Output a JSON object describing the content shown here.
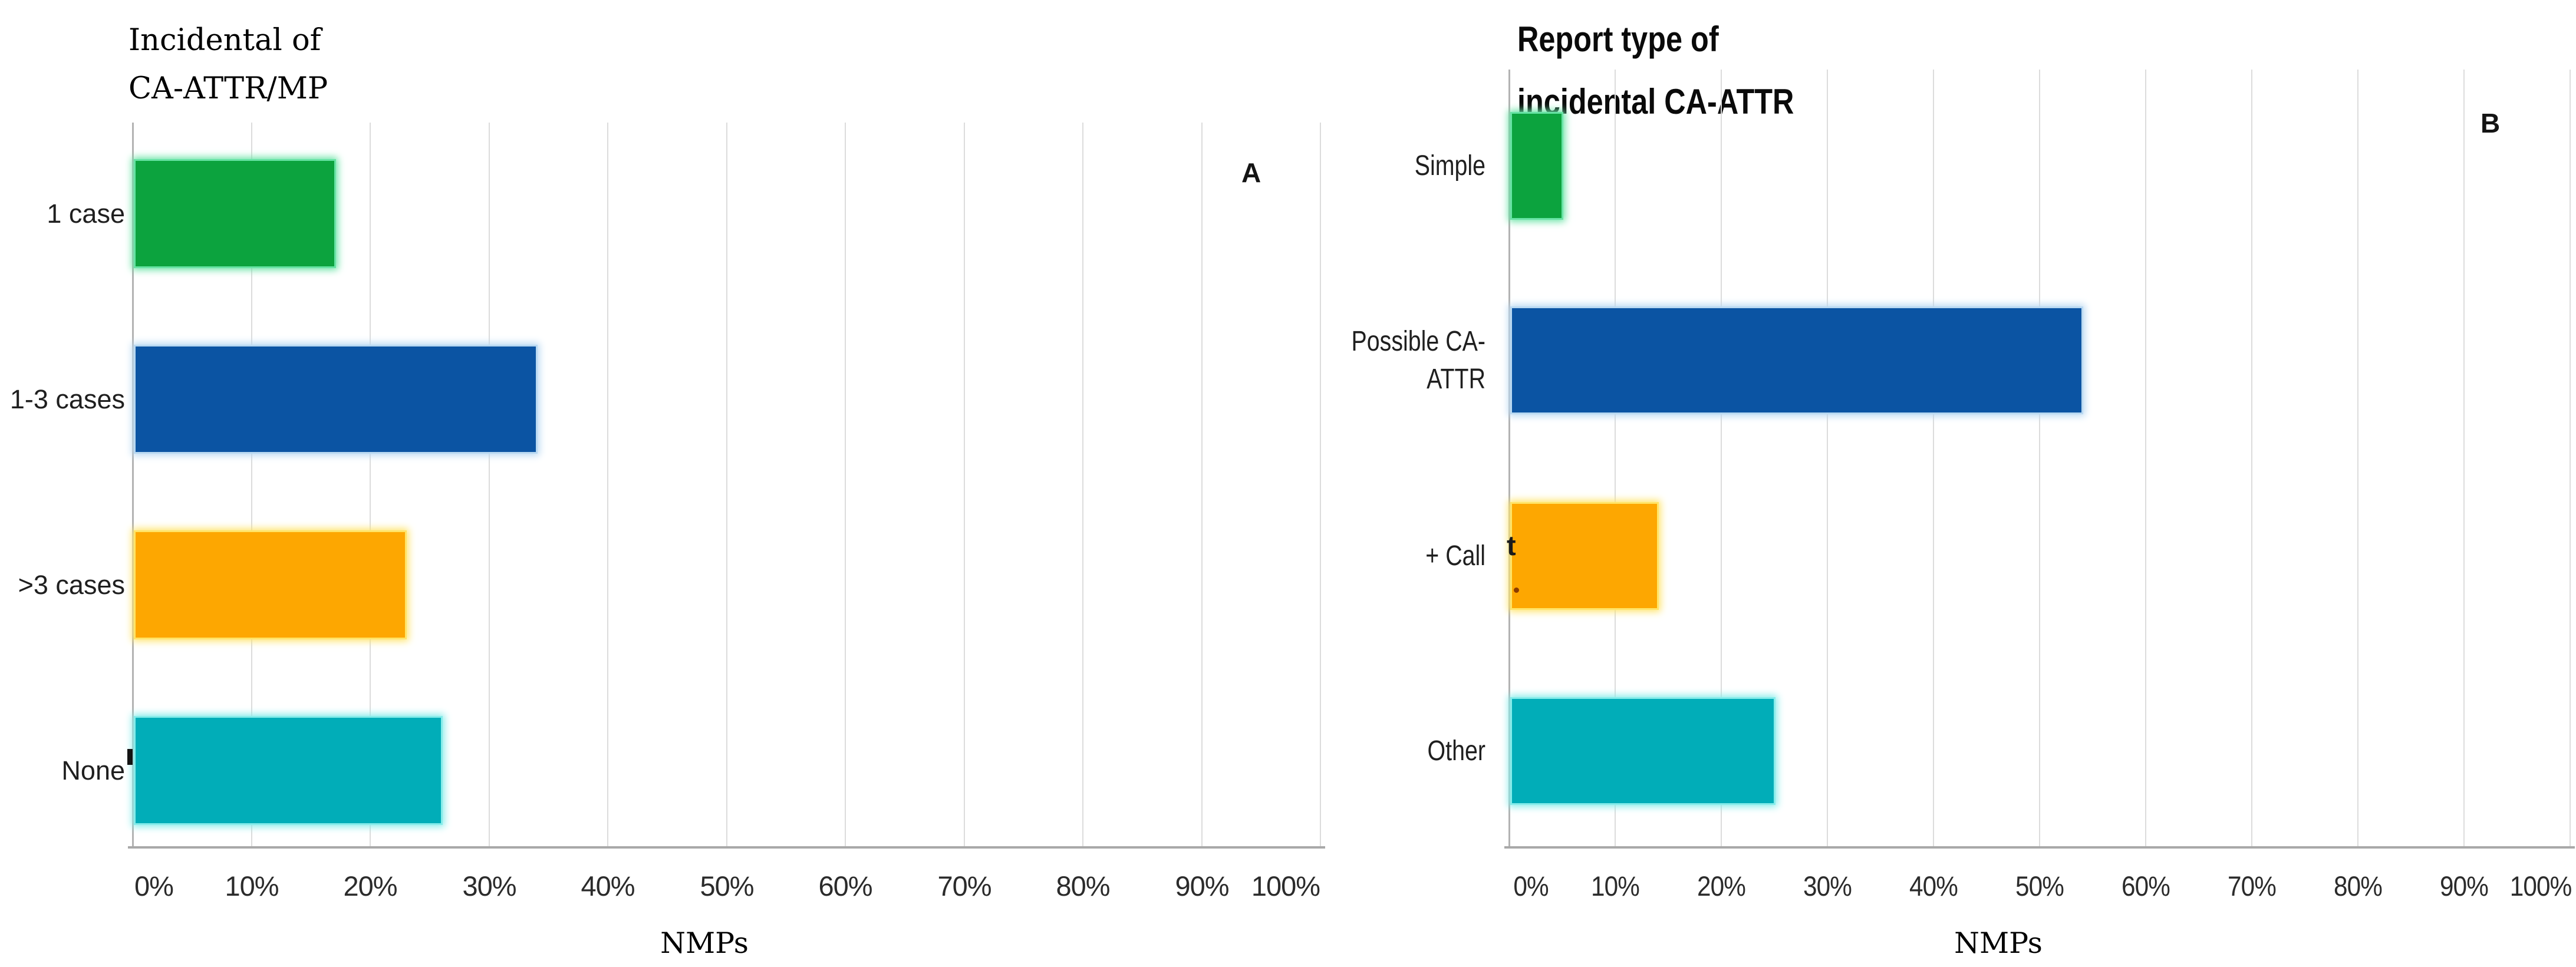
{
  "figure_caption": null,
  "panels": [
    {
      "key": "a",
      "panel_label": "A",
      "title_lines": [
        "Incidental of",
        "CA-ATTR/MP"
      ],
      "title_text": "Incidental of CA-ATTR/MP",
      "xlabel": "NMPs",
      "xticks": [
        "0%",
        "10%",
        "20%",
        "30%",
        "40%",
        "50%",
        "60%",
        "70%",
        "80%",
        "90%",
        "100%"
      ],
      "categories": [
        {
          "label": "1 case",
          "lines": [
            "1 case"
          ],
          "value": 17,
          "color": "#0ca33e",
          "halo": "#67e3a4"
        },
        {
          "label": "1-3 cases",
          "lines": [
            "1-3 cases"
          ],
          "value": 34,
          "color": "#0b54a3",
          "halo": "#b9d9f2"
        },
        {
          "label": ">3 cases",
          "lines": [
            ">3 cases"
          ],
          "value": 23,
          "color": "#fda701",
          "halo": "#ffe468"
        },
        {
          "label": "None",
          "lines": [
            "None"
          ],
          "value": 26,
          "color": "#01adb8",
          "halo": "#86ecea"
        }
      ]
    },
    {
      "key": "b",
      "panel_label": "B",
      "title_lines": [
        "Report type of",
        "incidental CA-ATTR"
      ],
      "title_text": "Report type of incidental CA-ATTR",
      "xlabel": "NMPs",
      "xticks": [
        "0%",
        "10%",
        "20%",
        "30%",
        "40%",
        "50%",
        "60%",
        "70%",
        "80%",
        "90%",
        "100%"
      ],
      "categories": [
        {
          "label": "Simple",
          "lines": [
            "Simple"
          ],
          "value": 5,
          "color": "#0ca33e",
          "halo": "#67e3a4"
        },
        {
          "label": "Possible CA-ATTR",
          "lines": [
            "Possible CA-",
            "ATTR"
          ],
          "value": 54,
          "color": "#0b54a3",
          "halo": "#b9d9f2"
        },
        {
          "label": "+ Call",
          "lines": [
            "+ Call"
          ],
          "value": 14,
          "color": "#fda701",
          "halo": "#ffe468"
        },
        {
          "label": "Other",
          "lines": [
            "Other"
          ],
          "value": 25,
          "color": "#01adb8",
          "halo": "#86ecea"
        }
      ],
      "artifacts": {
        "t_mark": "t",
        "dot_color": "#8a3b00"
      }
    }
  ],
  "colors": {
    "grid": "#dcdcdc",
    "axis": "#b3b3b3",
    "baseline": "#a8a8a8",
    "text": "#1f1f1f",
    "green": "#0ca33e",
    "blue": "#0b54a3",
    "orange": "#fda701",
    "teal": "#01adb8"
  },
  "chart_data": [
    {
      "type": "bar",
      "orientation": "horizontal",
      "panel": "A",
      "title": "Incidental of CA-ATTR/MP",
      "categories": [
        "1 case",
        "1-3 cases",
        ">3 cases",
        "None"
      ],
      "values": [
        17,
        34,
        23,
        26
      ],
      "unit": "%",
      "xlabel": "NMPs",
      "ylabel": "",
      "xlim": [
        0,
        100
      ],
      "xticks": [
        "0%",
        "10%",
        "20%",
        "30%",
        "40%",
        "50%",
        "60%",
        "70%",
        "80%",
        "90%",
        "100%"
      ],
      "grid": true,
      "legend": false,
      "bar_colors": [
        "#0ca33e",
        "#0b54a3",
        "#fda701",
        "#01adb8"
      ]
    },
    {
      "type": "bar",
      "orientation": "horizontal",
      "panel": "B",
      "title": "Report type of incidental CA-ATTR",
      "categories": [
        "Simple",
        "Possible CA-ATTR",
        "+ Call",
        "Other"
      ],
      "values": [
        5,
        54,
        14,
        25
      ],
      "unit": "%",
      "xlabel": "NMPs",
      "ylabel": "",
      "xlim": [
        0,
        100
      ],
      "xticks": [
        "0%",
        "10%",
        "20%",
        "30%",
        "40%",
        "50%",
        "60%",
        "70%",
        "80%",
        "90%",
        "100%"
      ],
      "grid": true,
      "legend": false,
      "bar_colors": [
        "#0ca33e",
        "#0b54a3",
        "#fda701",
        "#01adb8"
      ]
    }
  ]
}
